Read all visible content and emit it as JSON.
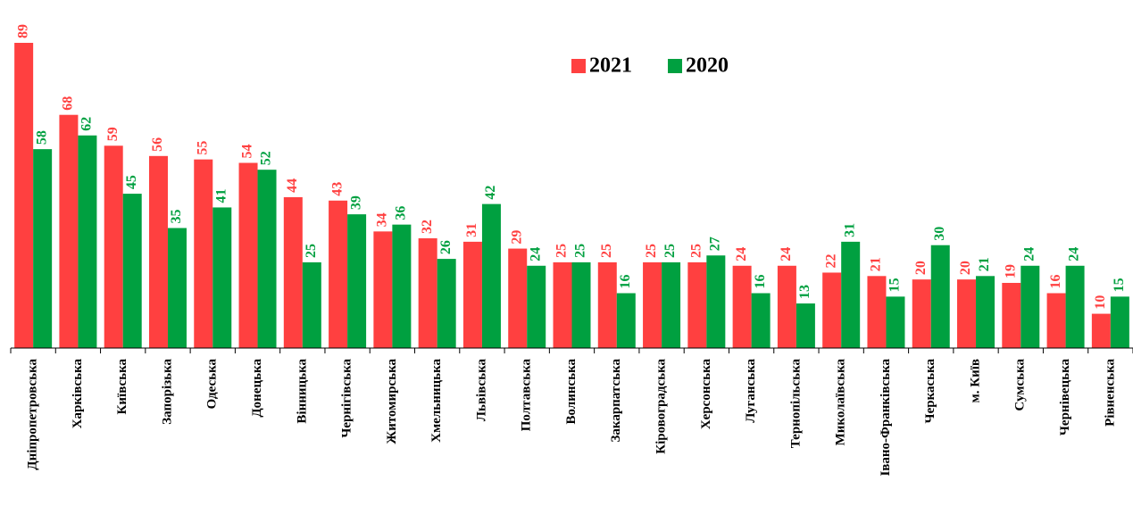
{
  "chart_data": {
    "type": "bar",
    "categories": [
      "Дніпропетровська",
      "Харківська",
      "Київська",
      "Запорізька",
      "Одеська",
      "Донецька",
      "Вінницька",
      "Чернігівська",
      "Житомирська",
      "Хмельницька",
      "Львівська",
      "Полтавська",
      "Волинська",
      "Закарпатська",
      "Кіровоградська",
      "Херсонська",
      "Луганська",
      "Тернопільська",
      "Миколаївська",
      "Івано-Франківська",
      "Черкаська",
      "м. Київ",
      "Сумська",
      "Чернівецька",
      "Рівненська"
    ],
    "series": [
      {
        "name": "2021",
        "color": "#ff4040",
        "values": [
          89,
          68,
          59,
          56,
          55,
          54,
          44,
          43,
          34,
          32,
          31,
          29,
          25,
          25,
          25,
          25,
          24,
          24,
          22,
          21,
          20,
          20,
          19,
          16,
          10
        ]
      },
      {
        "name": "2020",
        "color": "#00a040",
        "values": [
          58,
          62,
          45,
          35,
          41,
          52,
          25,
          39,
          36,
          26,
          42,
          24,
          25,
          16,
          25,
          27,
          16,
          13,
          31,
          15,
          30,
          21,
          24,
          24,
          15
        ]
      }
    ],
    "legend": "top-center"
  }
}
